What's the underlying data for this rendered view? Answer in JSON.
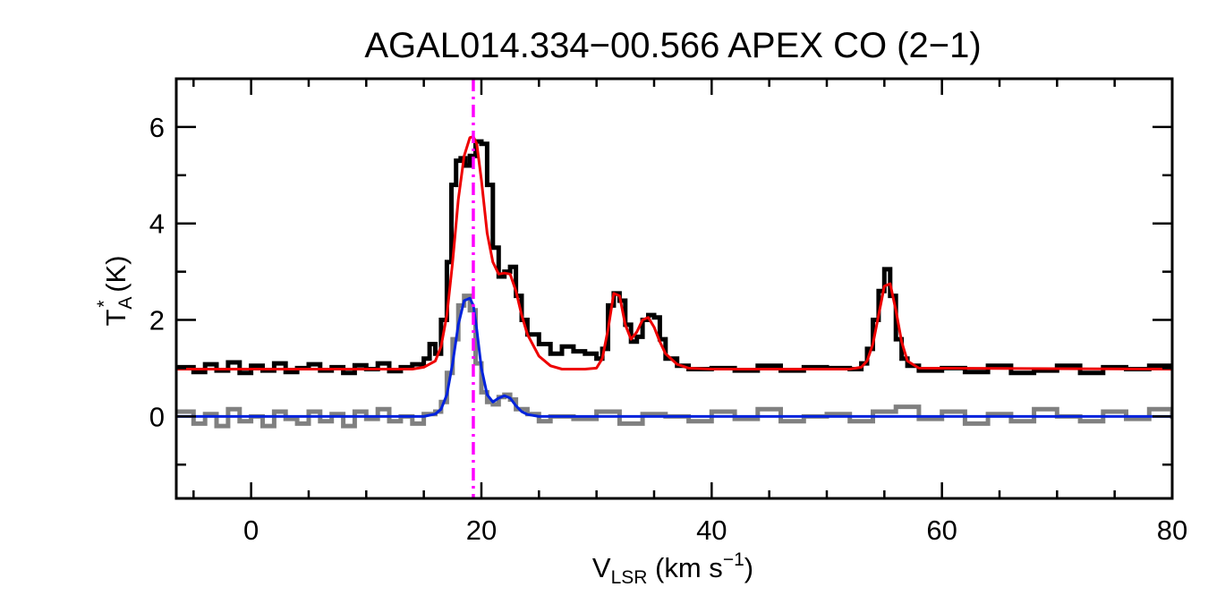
{
  "chart_data": {
    "type": "line",
    "title": "AGAL014.334−00.566  APEX CO (2−1)",
    "xlabel": {
      "main": "V",
      "sub": "LSR",
      "unit_pre": " (km s",
      "sup": "−1",
      "unit_post": ")"
    },
    "ylabel": {
      "main": "T",
      "sub": "A",
      "sup": "*",
      "unit": " (K)"
    },
    "xlim": [
      -6.5,
      80
    ],
    "ylim": [
      -1.7,
      7.0
    ],
    "x_ticks": [
      0,
      20,
      40,
      60,
      80
    ],
    "y_ticks": [
      0,
      2,
      4,
      6
    ],
    "x_minor_step": 5,
    "y_minor_step": 1,
    "grid": false,
    "legend": "none",
    "marker_line": {
      "x": 19.3,
      "color": "#ff00ff",
      "style": "dash-dot"
    },
    "series": [
      {
        "role": "observed spectrum (offset +1 K)",
        "color": "#000000",
        "style": "histogram",
        "x": [
          -6.5,
          -5,
          -4,
          -3,
          -2,
          -1,
          0,
          1,
          2,
          3,
          4,
          5,
          6,
          7,
          8,
          9,
          10,
          11,
          12,
          13,
          14,
          15,
          15.5,
          16,
          16.5,
          17,
          17.4,
          17.8,
          18.2,
          18.6,
          19,
          19.5,
          20,
          20.5,
          21,
          21.5,
          22,
          22.5,
          23,
          23.5,
          24,
          25,
          26,
          27,
          28,
          29,
          30,
          30.5,
          31,
          31.5,
          32,
          32.5,
          33,
          33.5,
          34,
          34.5,
          35,
          35.5,
          36,
          37,
          38,
          40,
          42,
          44,
          46,
          48,
          50,
          52,
          53,
          53.5,
          54,
          54.5,
          55,
          55.5,
          56,
          56.5,
          57,
          58,
          60,
          62,
          64,
          66,
          68,
          70,
          72,
          74,
          76,
          78,
          80
        ],
        "values": [
          1.02,
          0.92,
          1.08,
          0.95,
          1.12,
          0.9,
          1.05,
          0.95,
          1.1,
          0.92,
          1.0,
          1.08,
          0.95,
          1.02,
          0.9,
          1.06,
          0.98,
          1.1,
          0.94,
          1.02,
          1.08,
          1.2,
          1.5,
          1.3,
          2.0,
          3.2,
          4.8,
          5.3,
          5.35,
          5.2,
          5.4,
          5.7,
          5.65,
          4.8,
          3.5,
          2.9,
          3.0,
          3.1,
          2.5,
          2.0,
          1.7,
          1.5,
          1.3,
          1.45,
          1.35,
          1.3,
          1.2,
          1.4,
          2.3,
          2.55,
          2.4,
          1.9,
          1.55,
          1.65,
          2.0,
          2.1,
          2.05,
          1.6,
          1.2,
          1.05,
          0.98,
          1.0,
          0.95,
          1.05,
          0.95,
          1.02,
          1.0,
          0.98,
          1.1,
          1.4,
          2.0,
          2.6,
          3.05,
          2.5,
          1.6,
          1.2,
          1.05,
          0.95,
          1.0,
          0.92,
          1.05,
          0.9,
          0.95,
          1.05,
          0.9,
          1.02,
          0.98,
          1.05,
          0.95
        ]
      },
      {
        "role": "Gaussian fit to observed spectrum",
        "color": "#ee0000",
        "style": "line",
        "x": [
          -6.5,
          14,
          15,
          16,
          16.5,
          17,
          17.5,
          18,
          18.5,
          19,
          19.3,
          19.6,
          20,
          20.5,
          21,
          21.5,
          22,
          22.5,
          23,
          23.5,
          24,
          25,
          26,
          27,
          28,
          29,
          30,
          30.5,
          31,
          31.5,
          32,
          32.5,
          33,
          33.5,
          34,
          34.5,
          35,
          35.5,
          36,
          37,
          38,
          40,
          52,
          53,
          53.5,
          54,
          54.5,
          55,
          55.5,
          56,
          56.5,
          57,
          58,
          80
        ],
        "values": [
          0.98,
          0.98,
          1.02,
          1.15,
          1.45,
          2.1,
          3.2,
          4.5,
          5.4,
          5.78,
          5.8,
          5.65,
          4.9,
          3.8,
          3.2,
          2.95,
          2.97,
          2.95,
          2.6,
          2.1,
          1.7,
          1.25,
          1.05,
          0.98,
          0.98,
          0.98,
          1.0,
          1.2,
          1.8,
          2.55,
          2.5,
          1.9,
          1.6,
          1.75,
          2.0,
          2.05,
          1.85,
          1.55,
          1.3,
          1.08,
          1.0,
          0.98,
          0.98,
          1.02,
          1.15,
          1.5,
          2.1,
          2.7,
          2.75,
          2.2,
          1.55,
          1.15,
          1.0,
          0.98
        ]
      },
      {
        "role": "second spectrum",
        "color": "#808080",
        "style": "histogram",
        "x": [
          -6.5,
          -5,
          -4,
          -3,
          -2,
          -1,
          0,
          1,
          2,
          3,
          4,
          5,
          6,
          7,
          8,
          9,
          10,
          11,
          12,
          13,
          14,
          15,
          16,
          16.5,
          17,
          17.5,
          18,
          18.5,
          19,
          19.5,
          20,
          20.5,
          21,
          21.5,
          22,
          22.5,
          23,
          24,
          25,
          26,
          28,
          30,
          32,
          34,
          36,
          38,
          40,
          42,
          44,
          46,
          48,
          50,
          52,
          54,
          56,
          58,
          60,
          62,
          64,
          66,
          68,
          70,
          72,
          74,
          76,
          78,
          80
        ],
        "values": [
          0.1,
          -0.15,
          0.05,
          -0.2,
          0.15,
          -0.1,
          0.0,
          -0.2,
          0.1,
          -0.05,
          -0.15,
          0.1,
          -0.1,
          0.05,
          -0.2,
          0.1,
          -0.05,
          0.15,
          -0.1,
          0.0,
          -0.15,
          0.05,
          0.1,
          0.3,
          0.9,
          1.6,
          2.3,
          2.5,
          2.2,
          1.1,
          0.5,
          0.3,
          0.25,
          0.4,
          0.45,
          0.35,
          0.15,
          0.05,
          -0.1,
          0.0,
          -0.05,
          0.1,
          -0.15,
          0.05,
          0.0,
          -0.1,
          0.1,
          -0.05,
          0.15,
          -0.1,
          0.0,
          0.05,
          -0.1,
          0.1,
          0.2,
          -0.05,
          0.1,
          -0.15,
          0.05,
          -0.1,
          0.15,
          0.0,
          -0.1,
          0.1,
          -0.05,
          0.15,
          -0.05
        ]
      },
      {
        "role": "Gaussian fit to second spectrum",
        "color": "#0022dd",
        "style": "line",
        "x": [
          -6.5,
          15,
          16,
          16.5,
          17,
          17.5,
          18,
          18.5,
          19,
          19.3,
          19.6,
          20,
          20.5,
          21,
          21.5,
          22,
          22.5,
          23,
          23.5,
          24,
          25,
          80
        ],
        "values": [
          0.0,
          0.0,
          0.05,
          0.15,
          0.45,
          1.1,
          1.9,
          2.4,
          2.45,
          2.3,
          1.8,
          1.0,
          0.45,
          0.3,
          0.38,
          0.43,
          0.38,
          0.22,
          0.1,
          0.04,
          0.0,
          0.0
        ]
      }
    ]
  }
}
